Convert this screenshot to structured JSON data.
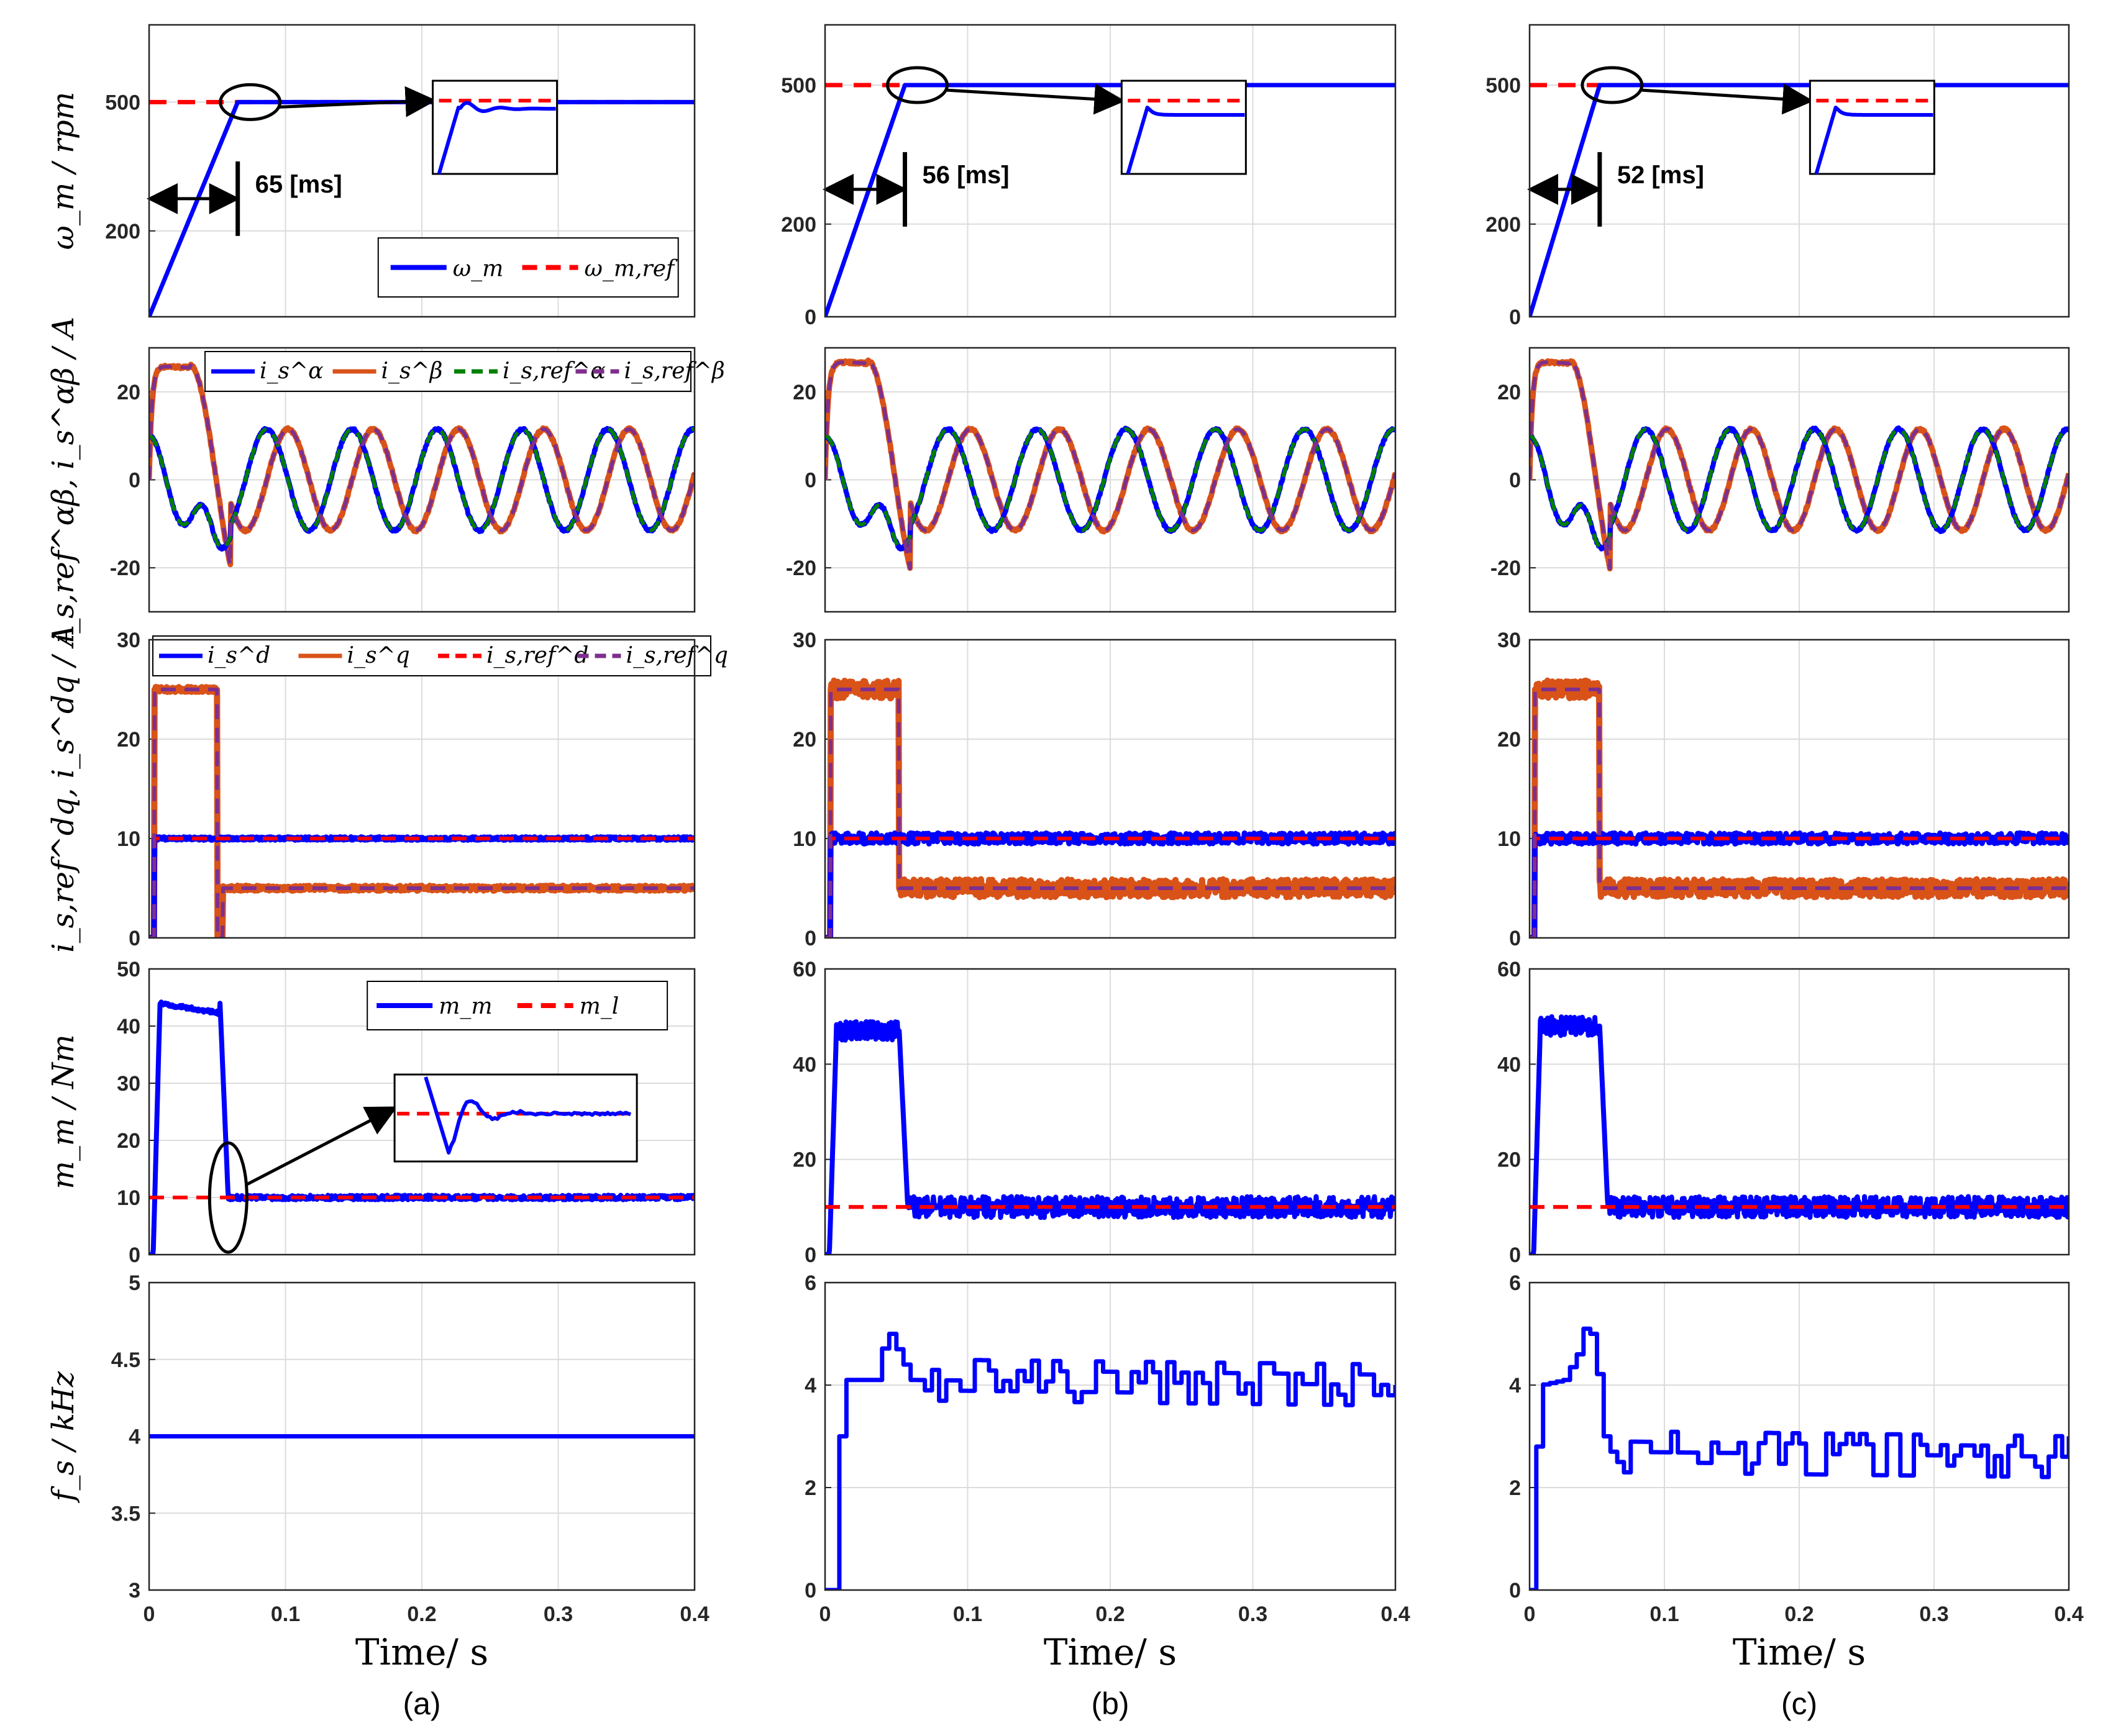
{
  "chart_data": {
    "type": "line",
    "columns": [
      {
        "label": "(a)",
        "xlabel": "Time/ s"
      },
      {
        "label": "(b)",
        "xlabel": "Time/ s"
      },
      {
        "label": "(c)",
        "xlabel": "Time/ s"
      }
    ],
    "x_ticks": [
      "0",
      "0.1",
      "0.2",
      "0.3",
      "0.4"
    ],
    "xlim": [
      0,
      0.4
    ],
    "rows": [
      {
        "key": "speed",
        "ylabel": "ω_m / rpm",
        "series": [
          {
            "name": "ω_m",
            "color": "#0000ff"
          },
          {
            "name": "ω_m,ref",
            "color": "#ff0000"
          }
        ],
        "reference": 500,
        "panels": [
          {
            "ylim": [
              0,
              680
            ],
            "ticks": [
              "200",
              "500"
            ],
            "tick_values": [
              200,
              500
            ],
            "settle_ms": 65,
            "annotation": "65 [ms]",
            "legend": [
              "ω_m",
              "ω_m,ref"
            ]
          },
          {
            "ylim": [
              0,
              630
            ],
            "ticks": [
              "0",
              "200",
              "500"
            ],
            "tick_values": [
              0,
              200,
              500
            ],
            "settle_ms": 56,
            "annotation": "56 [ms]"
          },
          {
            "ylim": [
              0,
              630
            ],
            "ticks": [
              "0",
              "200",
              "500"
            ],
            "tick_values": [
              0,
              200,
              500
            ],
            "settle_ms": 52,
            "annotation": "52 [ms]"
          }
        ]
      },
      {
        "key": "alphabeta",
        "ylabel": "i_s,ref^αβ, i_s^αβ / A",
        "series": [
          {
            "name": "i_s^α",
            "color": "#0000ff"
          },
          {
            "name": "i_s^β",
            "color": "#d95319"
          },
          {
            "name": "i_s,ref^α",
            "color": "#008000"
          },
          {
            "name": "i_s,ref^β",
            "color": "#7e2f8e"
          }
        ],
        "amplitude": 11.5,
        "frequency_hz": 16,
        "panels": [
          {
            "ylim": [
              -30,
              30
            ],
            "ticks": [
              "-20",
              "0",
              "20"
            ],
            "tick_values": [
              -20,
              0,
              20
            ],
            "startup_peak": 26,
            "legend": [
              "i_s^α",
              "i_s^β",
              "i_s,ref^α",
              "i_s,ref^β"
            ]
          },
          {
            "ylim": [
              -30,
              30
            ],
            "ticks": [
              "-20",
              "0",
              "20"
            ],
            "tick_values": [
              -20,
              0,
              20
            ],
            "startup_peak": 27
          },
          {
            "ylim": [
              -30,
              30
            ],
            "ticks": [
              "-20",
              "0",
              "20"
            ],
            "tick_values": [
              -20,
              0,
              20
            ],
            "startup_peak": 27
          }
        ]
      },
      {
        "key": "dq",
        "ylabel": "i_s,ref^dq, i_s^dq / A",
        "series": [
          {
            "name": "i_s^d",
            "color": "#0000ff"
          },
          {
            "name": "i_s^q",
            "color": "#d95319"
          },
          {
            "name": "i_s,ref^d",
            "color": "#ff0000"
          },
          {
            "name": "i_s,ref^q",
            "color": "#7e2f8e"
          }
        ],
        "id_ref": 10,
        "iq_start": 25,
        "iq_steady": 5,
        "panels": [
          {
            "ylim": [
              0,
              30
            ],
            "ticks": [
              "0",
              "10",
              "20",
              "30"
            ],
            "tick_values": [
              0,
              10,
              20,
              30
            ],
            "legend": [
              "i_s^d",
              "i_s^q",
              "i_s,ref^d",
              "i_s,ref^q"
            ]
          },
          {
            "ylim": [
              0,
              30
            ],
            "ticks": [
              "0",
              "10",
              "20",
              "30"
            ],
            "tick_values": [
              0,
              10,
              20,
              30
            ]
          },
          {
            "ylim": [
              0,
              30
            ],
            "ticks": [
              "0",
              "10",
              "20",
              "30"
            ],
            "tick_values": [
              0,
              10,
              20,
              30
            ]
          }
        ]
      },
      {
        "key": "torque",
        "ylabel": "m_m / Nm",
        "series": [
          {
            "name": "m_m",
            "color": "#0000ff"
          },
          {
            "name": "m_l",
            "color": "#ff0000"
          }
        ],
        "load_torque": 10,
        "panels": [
          {
            "ylim": [
              0,
              50
            ],
            "ticks": [
              "0",
              "10",
              "20",
              "30",
              "40",
              "50"
            ],
            "tick_values": [
              0,
              10,
              20,
              30,
              40,
              50
            ],
            "startup_torque": 44,
            "legend": [
              "m_m",
              "m_l"
            ]
          },
          {
            "ylim": [
              0,
              60
            ],
            "ticks": [
              "0",
              "20",
              "40",
              "60"
            ],
            "tick_values": [
              0,
              20,
              40,
              60
            ],
            "startup_torque": 47
          },
          {
            "ylim": [
              0,
              60
            ],
            "ticks": [
              "0",
              "20",
              "40",
              "60"
            ],
            "tick_values": [
              0,
              20,
              40,
              60
            ],
            "startup_torque": 48
          }
        ]
      },
      {
        "key": "fs",
        "ylabel": "f_s / kHz",
        "series": [
          {
            "name": "f_s",
            "color": "#0000ff"
          }
        ],
        "panels": [
          {
            "ylim": [
              3,
              5
            ],
            "ticks": [
              "3",
              "3.5",
              "4",
              "4.5",
              "5"
            ],
            "tick_values": [
              3,
              3.5,
              4,
              4.5,
              5
            ],
            "profile": [
              [
                0,
                4.0
              ],
              [
                0.4,
                4.0
              ]
            ]
          },
          {
            "ylim": [
              0,
              6
            ],
            "ticks": [
              "0",
              "2",
              "4",
              "6"
            ],
            "tick_values": [
              0,
              2,
              4,
              6
            ],
            "profile": [
              [
                0,
                0
              ],
              [
                0.005,
                0
              ],
              [
                0.008,
                3
              ],
              [
                0.013,
                3
              ],
              [
                0.015,
                4.1
              ],
              [
                0.035,
                4.1
              ],
              [
                0.038,
                4.6
              ],
              [
                0.045,
                5.0
              ],
              [
                0.05,
                4.7
              ],
              [
                0.055,
                4.4
              ],
              [
                0.06,
                4.1
              ],
              [
                0.4,
                4.0
              ]
            ]
          },
          {
            "ylim": [
              0,
              6
            ],
            "ticks": [
              "0",
              "2",
              "4",
              "6"
            ],
            "tick_values": [
              0,
              2,
              4,
              6
            ],
            "profile": [
              [
                0,
                0
              ],
              [
                0.003,
                2.0
              ],
              [
                0.008,
                4.0
              ],
              [
                0.025,
                4.1
              ],
              [
                0.035,
                4.6
              ],
              [
                0.042,
                5.3
              ],
              [
                0.048,
                4.7
              ],
              [
                0.055,
                3.0
              ],
              [
                0.06,
                2.7
              ],
              [
                0.4,
                2.6
              ]
            ]
          }
        ]
      }
    ]
  }
}
